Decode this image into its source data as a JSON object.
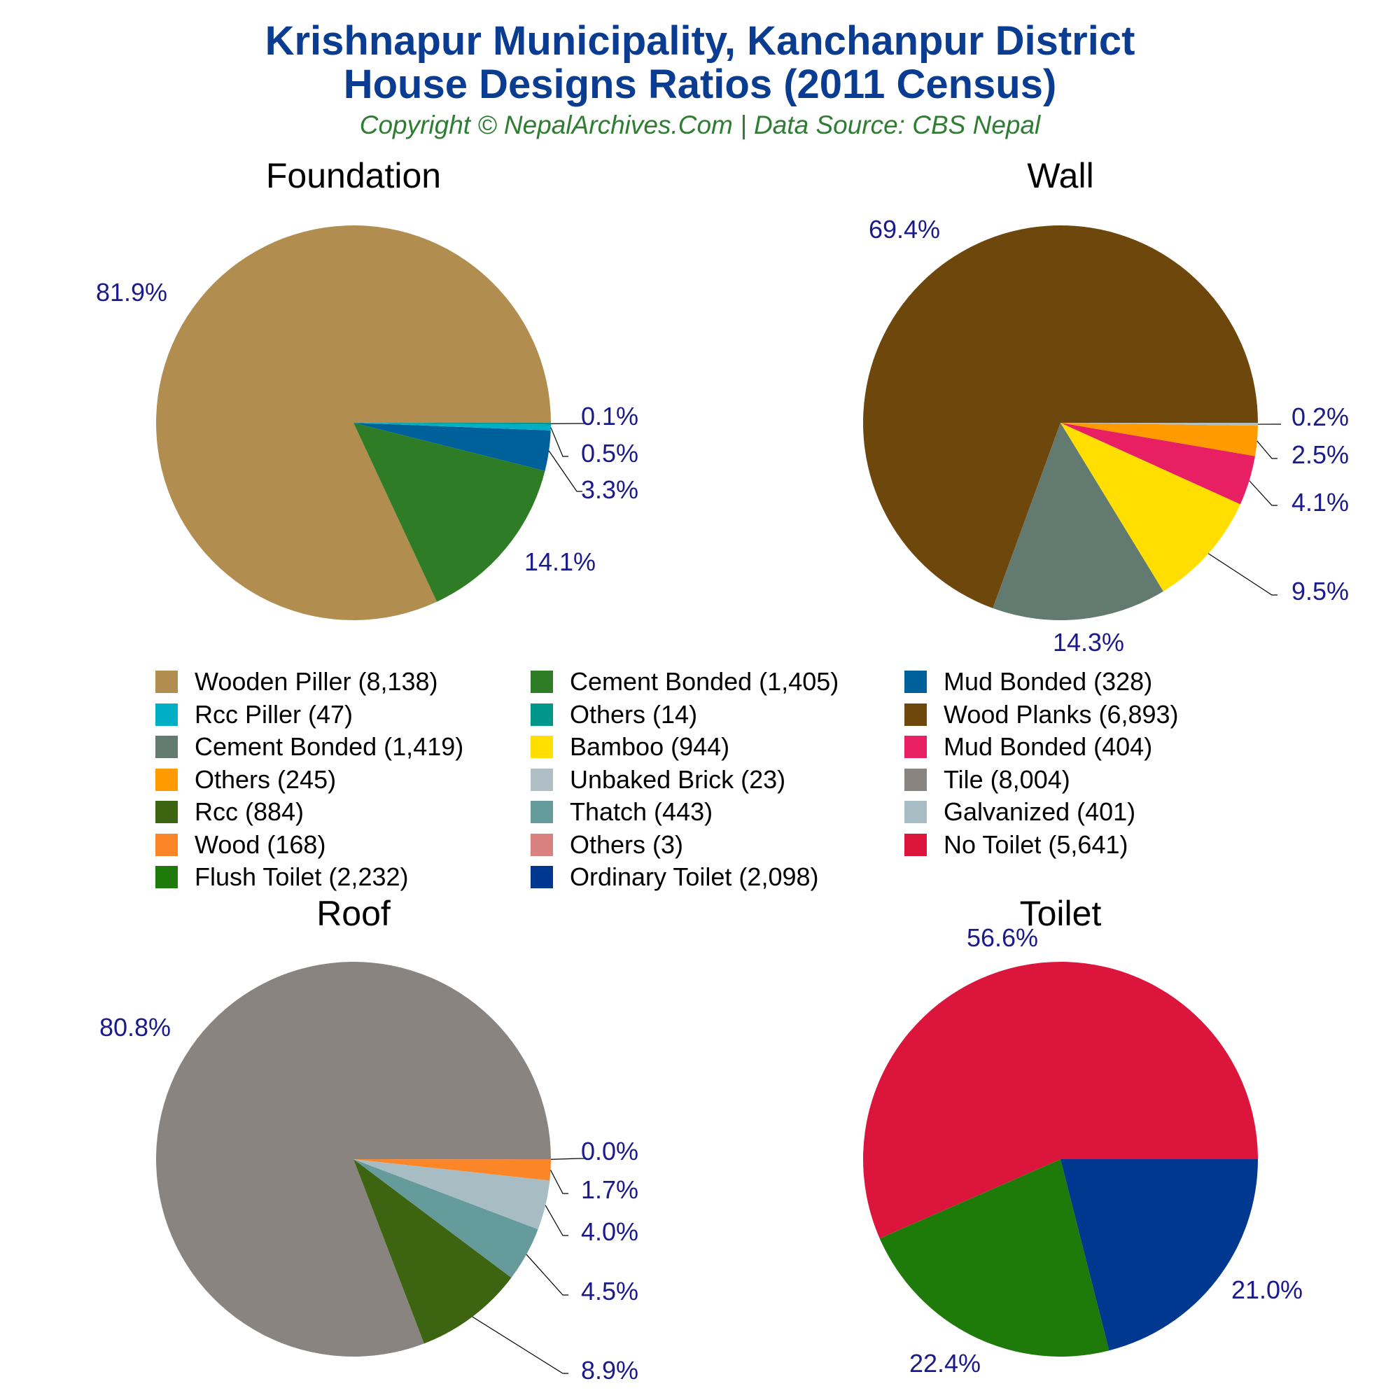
{
  "title_line1": "Krishnapur Municipality, Kanchanpur District",
  "title_line2": "House Designs Ratios (2011 Census)",
  "subtitle": "Copyright © NepalArchives.Com | Data Source: CBS Nepal",
  "chart_data": [
    {
      "type": "pie",
      "title": "Foundation",
      "slices": [
        {
          "label": "Wooden Piller",
          "value": 8138,
          "percent": "81.9%",
          "color": "#b28d50"
        },
        {
          "label": "Cement Bonded",
          "value": 1405,
          "percent": "14.1%",
          "color": "#2e7d26"
        },
        {
          "label": "Mud Bonded",
          "value": 328,
          "percent": "3.3%",
          "color": "#00619a"
        },
        {
          "label": "Rcc Piller",
          "value": 47,
          "percent": "0.5%",
          "color": "#00aec6"
        },
        {
          "label": "Others",
          "value": 14,
          "percent": "0.1%",
          "color": "#00968a"
        }
      ]
    },
    {
      "type": "pie",
      "title": "Wall",
      "slices": [
        {
          "label": "Wood Planks",
          "value": 6893,
          "percent": "69.4%",
          "color": "#6d470c"
        },
        {
          "label": "Cement Bonded",
          "value": 1419,
          "percent": "14.3%",
          "color": "#637a71"
        },
        {
          "label": "Bamboo",
          "value": 944,
          "percent": "9.5%",
          "color": "#ffde00"
        },
        {
          "label": "Mud Bonded",
          "value": 404,
          "percent": "4.1%",
          "color": "#e91f63"
        },
        {
          "label": "Others",
          "value": 245,
          "percent": "2.5%",
          "color": "#ff9a00"
        },
        {
          "label": "Unbaked Brick",
          "value": 23,
          "percent": "0.2%",
          "color": "#b0bec5"
        }
      ]
    },
    {
      "type": "pie",
      "title": "Roof",
      "slices": [
        {
          "label": "Tile",
          "value": 8004,
          "percent": "80.8%",
          "color": "#8a8480"
        },
        {
          "label": "Rcc",
          "value": 884,
          "percent": "8.9%",
          "color": "#3d6411"
        },
        {
          "label": "Thatch",
          "value": 443,
          "percent": "4.5%",
          "color": "#659b9a"
        },
        {
          "label": "Galvanized",
          "value": 401,
          "percent": "4.0%",
          "color": "#a8bcc4"
        },
        {
          "label": "Wood",
          "value": 168,
          "percent": "1.7%",
          "color": "#fb8628"
        },
        {
          "label": "Others",
          "value": 3,
          "percent": "0.0%",
          "color": "#d98080"
        }
      ]
    },
    {
      "type": "pie",
      "title": "Toilet",
      "slices": [
        {
          "label": "No Toilet",
          "value": 5641,
          "percent": "56.6%",
          "color": "#dc153d"
        },
        {
          "label": "Flush Toilet",
          "value": 2232,
          "percent": "22.4%",
          "color": "#1e7b09"
        },
        {
          "label": "Ordinary Toilet",
          "value": 2098,
          "percent": "21.0%",
          "color": "#00378f"
        }
      ]
    }
  ],
  "legend": [
    {
      "text": "Wooden Piller (8,138)",
      "color": "#b28d50"
    },
    {
      "text": "Cement Bonded (1,405)",
      "color": "#2e7d26"
    },
    {
      "text": "Mud Bonded (328)",
      "color": "#00619a"
    },
    {
      "text": "Rcc Piller (47)",
      "color": "#00aec6"
    },
    {
      "text": "Others (14)",
      "color": "#00968a"
    },
    {
      "text": "Wood Planks (6,893)",
      "color": "#6d470c"
    },
    {
      "text": "Cement Bonded (1,419)",
      "color": "#637a71"
    },
    {
      "text": "Bamboo (944)",
      "color": "#ffde00"
    },
    {
      "text": "Mud Bonded (404)",
      "color": "#e91f63"
    },
    {
      "text": "Others (245)",
      "color": "#ff9a00"
    },
    {
      "text": "Unbaked Brick (23)",
      "color": "#b0bec5"
    },
    {
      "text": "Tile (8,004)",
      "color": "#8a8480"
    },
    {
      "text": "Rcc (884)",
      "color": "#3d6411"
    },
    {
      "text": "Thatch (443)",
      "color": "#659b9a"
    },
    {
      "text": "Galvanized (401)",
      "color": "#a8bcc4"
    },
    {
      "text": "Wood (168)",
      "color": "#fb8628"
    },
    {
      "text": "Others (3)",
      "color": "#d98080"
    },
    {
      "text": "No Toilet (5,641)",
      "color": "#dc153d"
    },
    {
      "text": "Flush Toilet (2,232)",
      "color": "#1e7b09"
    },
    {
      "text": "Ordinary Toilet (2,098)",
      "color": "#00378f"
    }
  ]
}
